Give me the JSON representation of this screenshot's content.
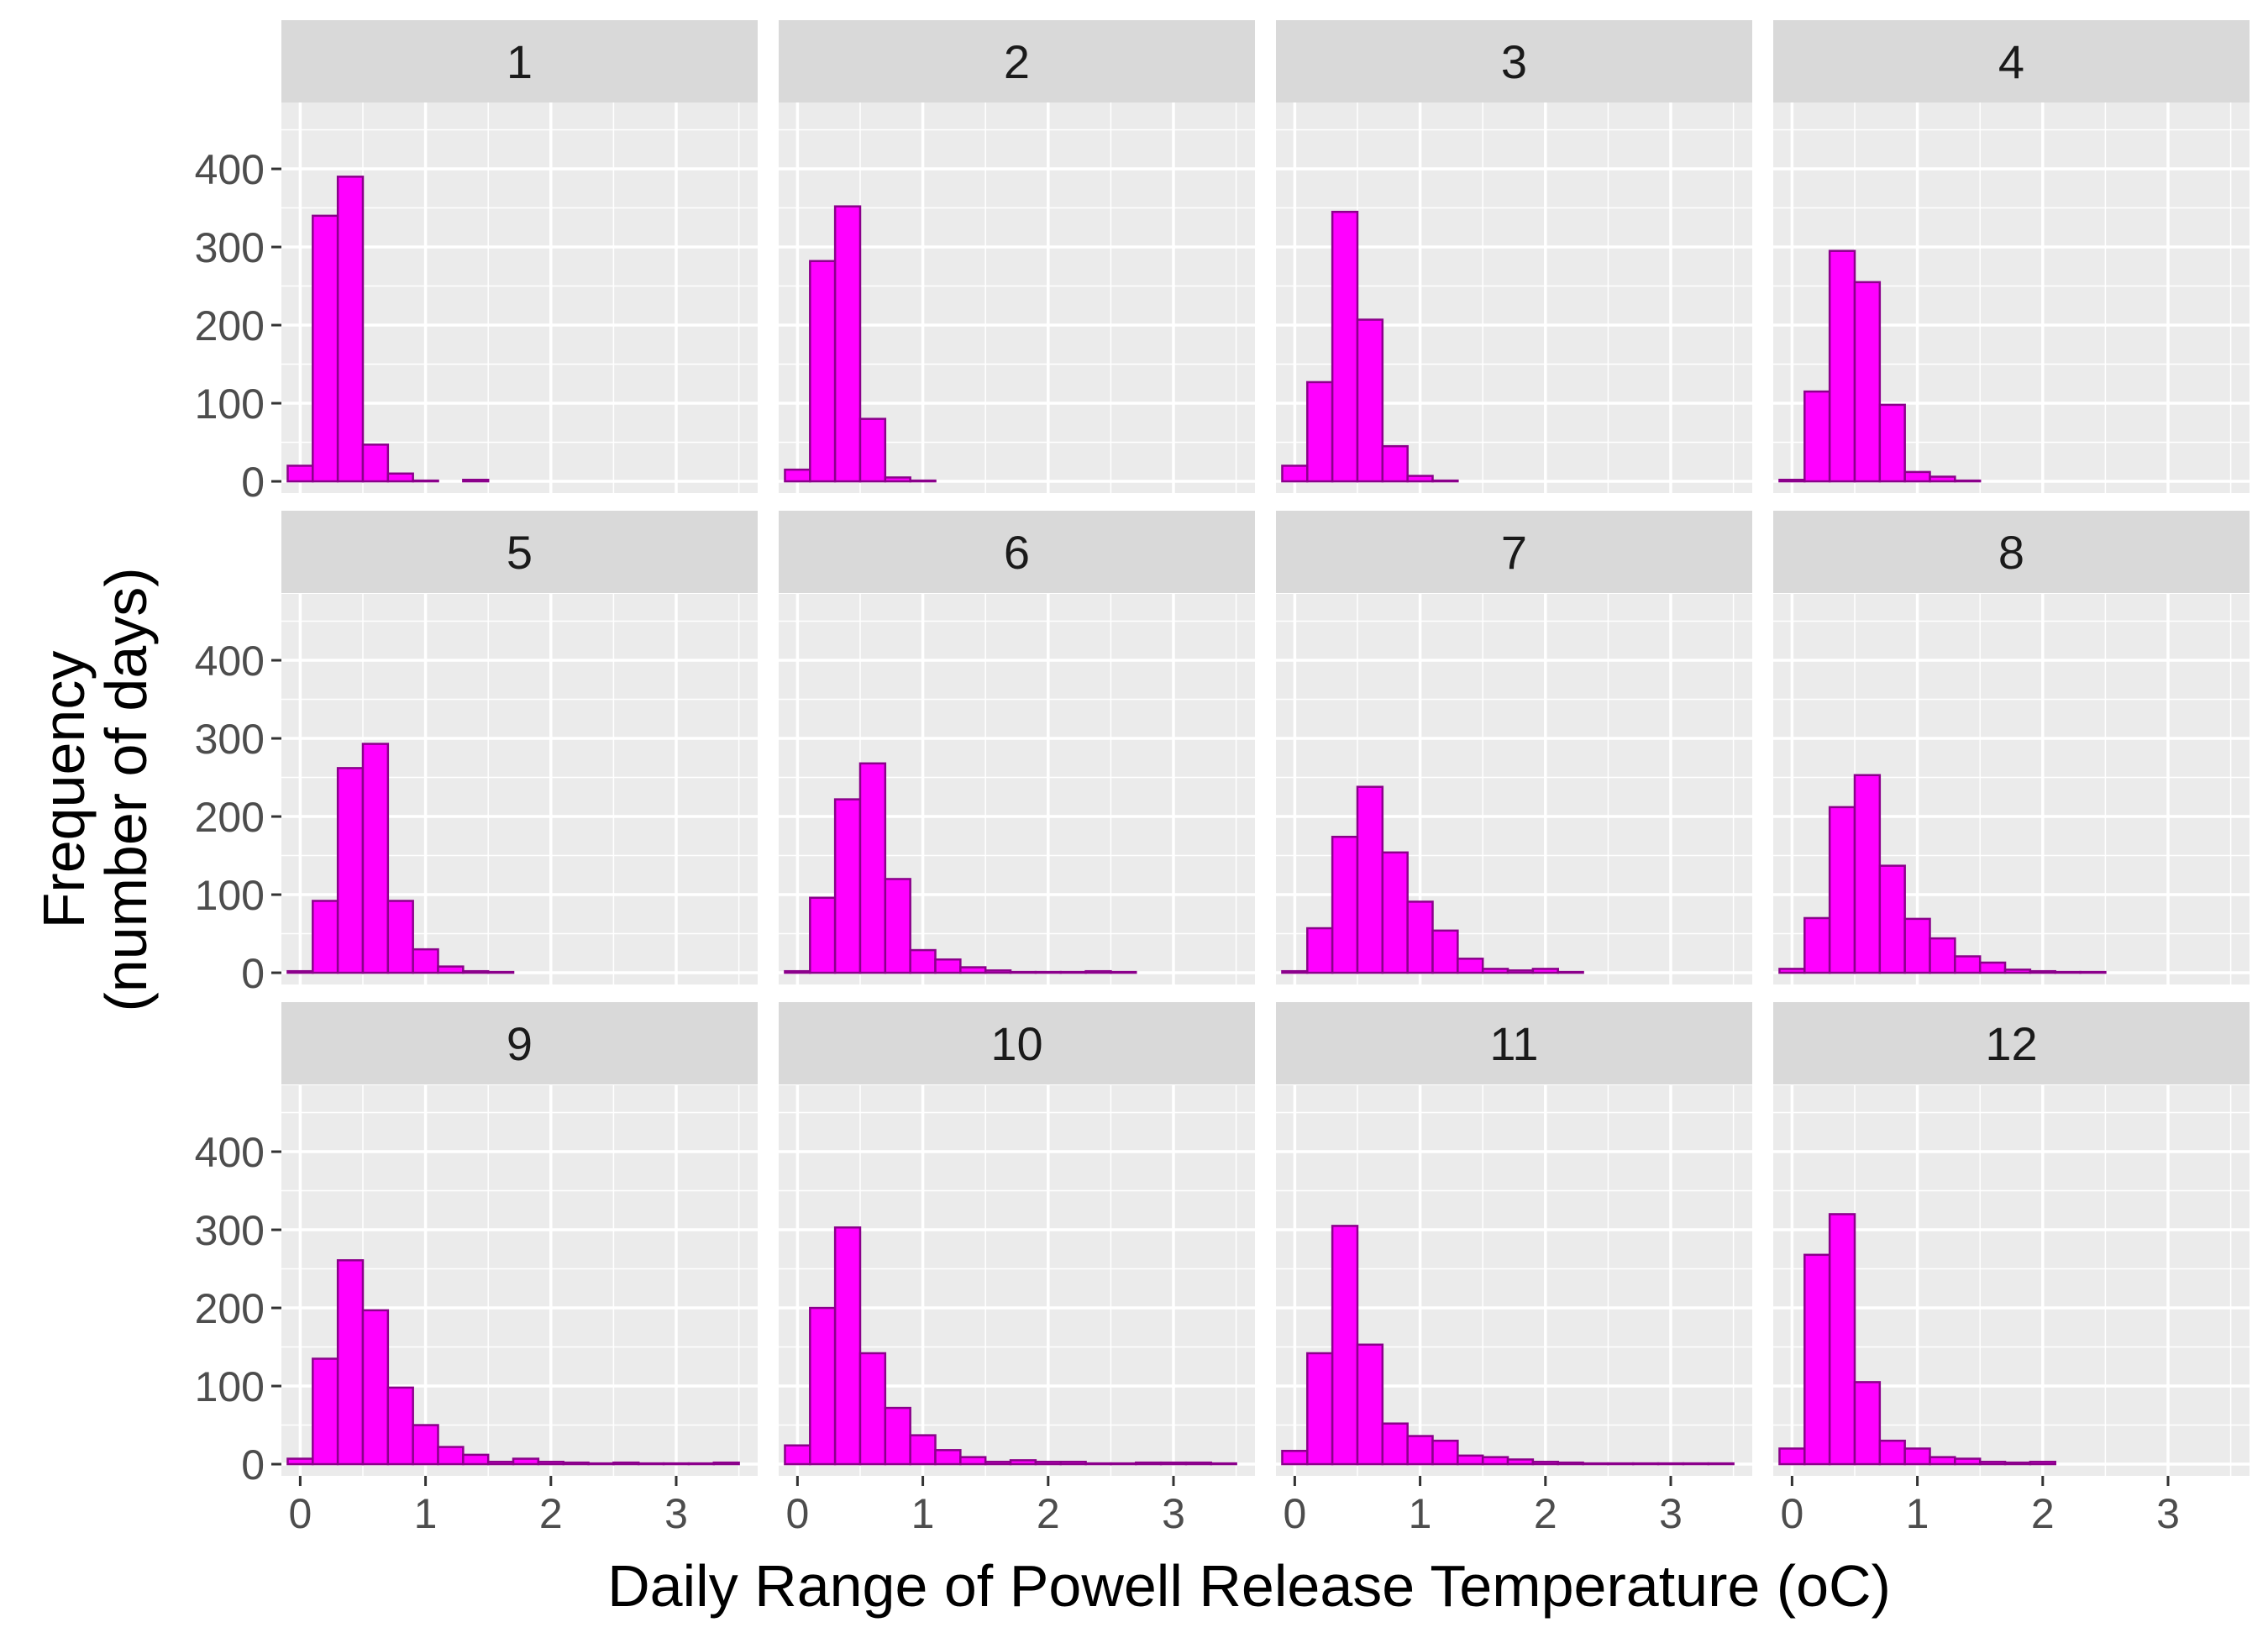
{
  "chart_data": {
    "type": "bar",
    "title": "",
    "xlabel": "Daily Range of Powell Release Temperature (oC)",
    "ylabel_lines": [
      "Frequency",
      "(number of days)"
    ],
    "xlim": [
      -0.15,
      3.65
    ],
    "ylim": [
      -15,
      485
    ],
    "x_ticks": [
      0,
      1,
      2,
      3
    ],
    "y_ticks": [
      0,
      100,
      200,
      300,
      400
    ],
    "bin_width": 0.2,
    "bin_centers": [
      0.0,
      0.2,
      0.4,
      0.6,
      0.8,
      1.0,
      1.2,
      1.4,
      1.6,
      1.8,
      2.0,
      2.2,
      2.4,
      2.6,
      2.8,
      3.0,
      3.2,
      3.4
    ],
    "bar_fill": "#ff00ff",
    "bar_outline": "#8b008b",
    "panel_background": "#ebebeb",
    "strip_background": "#d9d9d9",
    "grid": true,
    "facets": [
      {
        "label": "1",
        "counts": [
          20,
          340,
          390,
          47,
          10,
          1,
          0,
          2,
          0,
          0,
          0,
          0,
          0,
          0,
          0,
          0,
          0,
          0
        ]
      },
      {
        "label": "2",
        "counts": [
          15,
          282,
          352,
          80,
          5,
          1,
          0,
          0,
          0,
          0,
          0,
          0,
          0,
          0,
          0,
          0,
          0,
          0
        ]
      },
      {
        "label": "3",
        "counts": [
          20,
          127,
          345,
          207,
          45,
          7,
          1,
          0,
          0,
          0,
          0,
          0,
          0,
          0,
          0,
          0,
          0,
          0
        ]
      },
      {
        "label": "4",
        "counts": [
          2,
          115,
          295,
          255,
          98,
          12,
          6,
          1,
          0,
          0,
          0,
          0,
          0,
          0,
          0,
          0,
          0,
          0
        ]
      },
      {
        "label": "5",
        "counts": [
          2,
          92,
          262,
          293,
          92,
          30,
          8,
          2,
          1,
          0,
          0,
          0,
          0,
          0,
          0,
          0,
          0,
          0
        ]
      },
      {
        "label": "6",
        "counts": [
          2,
          96,
          222,
          268,
          120,
          29,
          17,
          7,
          3,
          1,
          1,
          1,
          2,
          1,
          0,
          0,
          0,
          0
        ]
      },
      {
        "label": "7",
        "counts": [
          2,
          57,
          174,
          238,
          154,
          91,
          54,
          18,
          5,
          3,
          5,
          1,
          0,
          0,
          0,
          0,
          0,
          0
        ]
      },
      {
        "label": "8",
        "counts": [
          5,
          70,
          212,
          253,
          137,
          69,
          44,
          21,
          13,
          4,
          2,
          1,
          1,
          0,
          0,
          0,
          0,
          0
        ]
      },
      {
        "label": "9",
        "counts": [
          7,
          135,
          261,
          197,
          98,
          50,
          22,
          12,
          3,
          7,
          3,
          2,
          1,
          2,
          1,
          1,
          1,
          2
        ]
      },
      {
        "label": "10",
        "counts": [
          24,
          200,
          303,
          142,
          72,
          37,
          18,
          9,
          3,
          5,
          3,
          3,
          1,
          1,
          2,
          2,
          2,
          1
        ]
      },
      {
        "label": "11",
        "counts": [
          17,
          142,
          305,
          153,
          52,
          36,
          30,
          11,
          9,
          6,
          3,
          2,
          1,
          1,
          1,
          1,
          1,
          1
        ]
      },
      {
        "label": "12",
        "counts": [
          20,
          268,
          320,
          105,
          30,
          20,
          9,
          7,
          3,
          2,
          3,
          0,
          0,
          0,
          0,
          0,
          0,
          0
        ]
      }
    ]
  }
}
